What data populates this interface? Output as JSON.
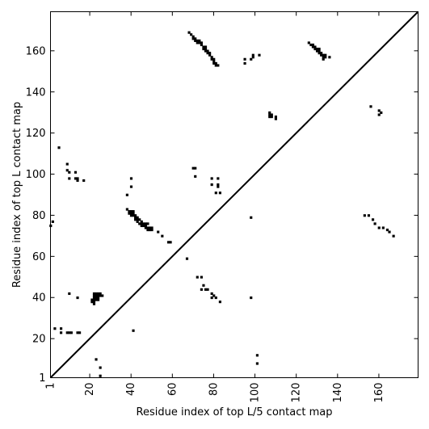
{
  "chart_data": {
    "type": "scatter",
    "xlabel": "Residue index of top L/5 contact map",
    "ylabel": "Residue index of top L contact map",
    "xlim": [
      1,
      179
    ],
    "ylim": [
      1,
      179
    ],
    "x_ticks": [
      1,
      20,
      40,
      60,
      80,
      100,
      120,
      140,
      160
    ],
    "y_ticks": [
      1,
      20,
      40,
      60,
      80,
      100,
      120,
      140,
      160
    ],
    "grid": false,
    "diagonal": true,
    "marker_color": "#000000",
    "series": [
      {
        "region": "upper-left (top L)",
        "points": [
          [
            68,
            169
          ],
          [
            69,
            168
          ],
          [
            70,
            167
          ],
          [
            70,
            166
          ],
          [
            71,
            166
          ],
          [
            71,
            165
          ],
          [
            72,
            165
          ],
          [
            73,
            165
          ],
          [
            72,
            164
          ],
          [
            73,
            164
          ],
          [
            74,
            164
          ],
          [
            74,
            163
          ],
          [
            75,
            162
          ],
          [
            76,
            162
          ],
          [
            75,
            161
          ],
          [
            76,
            161
          ],
          [
            76,
            160
          ],
          [
            77,
            160
          ],
          [
            77,
            159
          ],
          [
            78,
            159
          ],
          [
            78,
            158
          ],
          [
            79,
            157
          ],
          [
            79,
            156
          ],
          [
            80,
            156
          ],
          [
            80,
            155
          ],
          [
            80,
            154
          ],
          [
            81,
            154
          ],
          [
            81,
            153
          ],
          [
            82,
            153
          ],
          [
            95,
            156
          ],
          [
            95,
            154
          ],
          [
            98,
            156
          ],
          [
            99,
            157
          ],
          [
            99,
            158
          ],
          [
            102,
            158
          ],
          [
            126,
            164
          ],
          [
            127,
            163
          ],
          [
            128,
            163
          ],
          [
            128,
            162
          ],
          [
            129,
            162
          ],
          [
            129,
            161
          ],
          [
            130,
            161
          ],
          [
            131,
            161
          ],
          [
            130,
            160
          ],
          [
            131,
            160
          ],
          [
            131,
            159
          ],
          [
            132,
            159
          ],
          [
            133,
            158
          ],
          [
            132,
            158
          ],
          [
            134,
            158
          ],
          [
            133,
            157
          ],
          [
            134,
            157
          ],
          [
            136,
            157
          ],
          [
            133,
            156
          ],
          [
            107,
            130
          ],
          [
            107,
            129
          ],
          [
            108,
            129
          ],
          [
            107,
            128
          ],
          [
            108,
            128
          ],
          [
            110,
            128
          ],
          [
            110,
            127
          ],
          [
            5,
            113
          ],
          [
            9,
            105
          ],
          [
            9,
            102
          ],
          [
            10,
            101
          ],
          [
            13,
            101
          ],
          [
            13,
            98
          ],
          [
            14,
            98
          ],
          [
            14,
            97
          ],
          [
            17,
            97
          ],
          [
            10,
            98
          ],
          [
            40,
            98
          ],
          [
            40,
            94
          ],
          [
            38,
            90
          ],
          [
            2,
            77
          ],
          [
            1,
            75
          ],
          [
            38,
            83
          ],
          [
            39,
            82
          ],
          [
            40,
            82
          ],
          [
            41,
            82
          ],
          [
            39,
            81
          ],
          [
            40,
            81
          ],
          [
            41,
            81
          ],
          [
            40,
            80
          ],
          [
            41,
            80
          ],
          [
            42,
            80
          ],
          [
            42,
            79
          ],
          [
            43,
            79
          ],
          [
            42,
            78
          ],
          [
            43,
            78
          ],
          [
            44,
            78
          ],
          [
            43,
            77
          ],
          [
            45,
            77
          ],
          [
            44,
            76
          ],
          [
            45,
            76
          ],
          [
            46,
            76
          ],
          [
            47,
            76
          ],
          [
            48,
            76
          ],
          [
            45,
            75
          ],
          [
            46,
            75
          ],
          [
            47,
            75
          ],
          [
            47,
            74
          ],
          [
            48,
            74
          ],
          [
            49,
            74
          ],
          [
            48,
            73
          ],
          [
            49,
            73
          ],
          [
            50,
            73
          ],
          [
            50,
            74
          ],
          [
            53,
            72
          ],
          [
            55,
            70
          ],
          [
            58,
            67
          ],
          [
            59,
            67
          ],
          [
            10,
            42
          ],
          [
            14,
            40
          ],
          [
            22,
            42
          ],
          [
            23,
            42
          ],
          [
            24,
            42
          ],
          [
            25,
            42
          ],
          [
            22,
            41
          ],
          [
            23,
            41
          ],
          [
            24,
            41
          ],
          [
            25,
            41
          ],
          [
            26,
            41
          ],
          [
            22,
            40
          ],
          [
            23,
            40
          ],
          [
            24,
            40
          ],
          [
            21,
            39
          ],
          [
            22,
            39
          ],
          [
            23,
            39
          ],
          [
            24,
            39
          ],
          [
            21,
            38
          ],
          [
            22,
            38
          ],
          [
            22,
            37
          ],
          [
            3,
            25
          ],
          [
            6,
            25
          ],
          [
            6,
            23
          ],
          [
            9,
            23
          ],
          [
            10,
            23
          ],
          [
            11,
            23
          ],
          [
            14,
            23
          ],
          [
            15,
            23
          ],
          [
            41,
            24
          ]
        ]
      },
      {
        "region": "lower-right (top L/5)",
        "points": [
          [
            156,
            133
          ],
          [
            160,
            131
          ],
          [
            160,
            129
          ],
          [
            161,
            130
          ],
          [
            70,
            103
          ],
          [
            71,
            103
          ],
          [
            71,
            99
          ],
          [
            79,
            98
          ],
          [
            82,
            98
          ],
          [
            79,
            95
          ],
          [
            82,
            95
          ],
          [
            82,
            94
          ],
          [
            81,
            91
          ],
          [
            83,
            91
          ],
          [
            98,
            79
          ],
          [
            153,
            80
          ],
          [
            155,
            80
          ],
          [
            157,
            78
          ],
          [
            158,
            76
          ],
          [
            160,
            74
          ],
          [
            162,
            74
          ],
          [
            164,
            73
          ],
          [
            165,
            72
          ],
          [
            167,
            70
          ],
          [
            67,
            59
          ],
          [
            72,
            50
          ],
          [
            74,
            50
          ],
          [
            75,
            46
          ],
          [
            74,
            44
          ],
          [
            76,
            44
          ],
          [
            77,
            44
          ],
          [
            79,
            42
          ],
          [
            80,
            41
          ],
          [
            79,
            40
          ],
          [
            81,
            40
          ],
          [
            83,
            38
          ],
          [
            98,
            40
          ],
          [
            23,
            10
          ],
          [
            25,
            6
          ],
          [
            25,
            2
          ],
          [
            101,
            12
          ],
          [
            101,
            8
          ]
        ]
      }
    ]
  }
}
